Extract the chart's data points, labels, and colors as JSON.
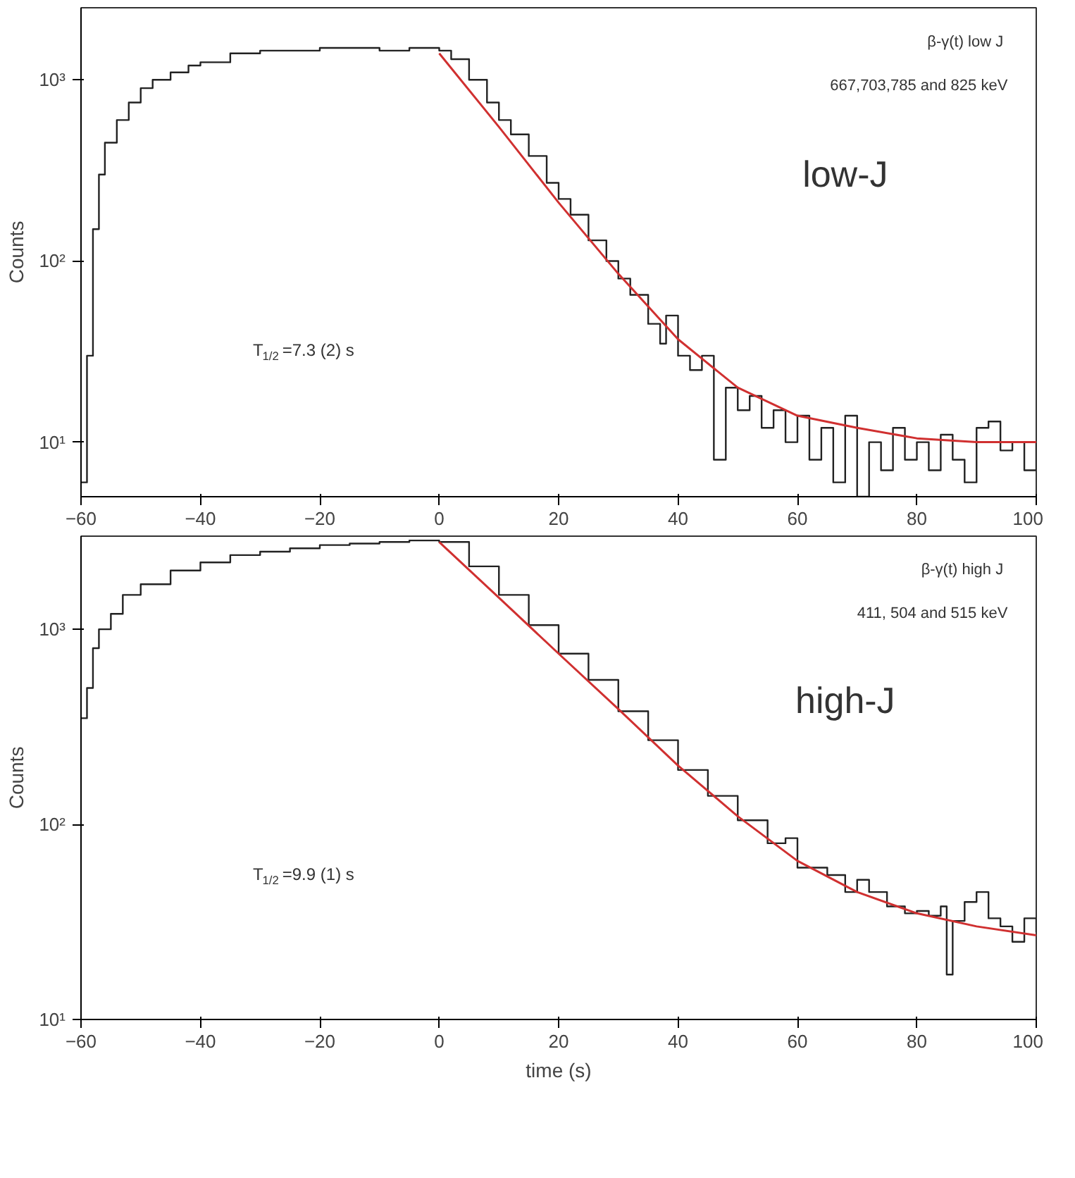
{
  "chart_data": [
    {
      "type": "step",
      "ylabel": "Counts",
      "log": "y",
      "grid": false,
      "xlim": [
        -60,
        100
      ],
      "ylim": [
        5,
        2500
      ],
      "xticks": [
        -60,
        -40,
        -20,
        0,
        20,
        40,
        60,
        80,
        100
      ],
      "yticks": [
        {
          "value": 10,
          "label": "10¹"
        },
        {
          "value": 100,
          "label": "10²"
        },
        {
          "value": 1000,
          "label": "10³"
        }
      ],
      "annotations": [
        "β-γ(t)  low J",
        "667,703,785 and 825 keV",
        "low-J",
        "T$_{1/2}$=7.3 (2) s"
      ],
      "series": [
        {
          "color": "#222222",
          "x": [
            -60,
            -59,
            -58,
            -57,
            -56,
            -54,
            -52,
            -50,
            -48,
            -45,
            -42,
            -40,
            -35,
            -30,
            -25,
            -20,
            -15,
            -10,
            -5,
            0,
            2,
            5,
            8,
            10,
            12,
            15,
            18,
            20,
            22,
            25,
            28,
            30,
            32,
            35,
            37,
            38,
            40,
            42,
            44,
            46,
            48,
            50,
            52,
            54,
            56,
            58,
            60,
            62,
            64,
            66,
            68,
            70,
            72,
            74,
            76,
            78,
            80,
            82,
            84,
            86,
            88,
            90,
            92,
            94,
            96,
            98,
            100
          ],
          "values": [
            6,
            30,
            150,
            300,
            450,
            600,
            750,
            900,
            1000,
            1100,
            1200,
            1250,
            1400,
            1450,
            1450,
            1500,
            1500,
            1450,
            1500,
            1450,
            1300,
            1000,
            750,
            600,
            500,
            380,
            270,
            220,
            180,
            130,
            100,
            80,
            65,
            45,
            35,
            50,
            30,
            25,
            30,
            8,
            20,
            15,
            18,
            12,
            15,
            10,
            14,
            8,
            12,
            6,
            14,
            5,
            10,
            7,
            12,
            8,
            10,
            7,
            11,
            8,
            6,
            12,
            13,
            9,
            10,
            7,
            10
          ]
        },
        {
          "type": "line",
          "color": "#d03030",
          "x": [
            0,
            10,
            20,
            30,
            40,
            50,
            60,
            70,
            80,
            90,
            100
          ],
          "values": [
            1400,
            550,
            210,
            85,
            37,
            20,
            14,
            12,
            10.5,
            10,
            10
          ]
        }
      ]
    },
    {
      "type": "step",
      "xlabel": "time (s)",
      "ylabel": "Counts",
      "log": "y",
      "grid": false,
      "xlim": [
        -60,
        100
      ],
      "ylim": [
        10,
        3000
      ],
      "xticks": [
        -60,
        -40,
        -20,
        0,
        20,
        40,
        60,
        80,
        100
      ],
      "yticks": [
        {
          "value": 10,
          "label": "10¹"
        },
        {
          "value": 100,
          "label": "10²"
        },
        {
          "value": 1000,
          "label": "10³"
        }
      ],
      "annotations": [
        "β-γ(t)  high J",
        "411, 504 and 515 keV",
        "high-J",
        "T$_{1/2}$=9.9 (1) s"
      ],
      "series": [
        {
          "color": "#222222",
          "x": [
            -60,
            -59,
            -58,
            -57,
            -55,
            -53,
            -50,
            -45,
            -40,
            -35,
            -30,
            -25,
            -20,
            -15,
            -10,
            -5,
            0,
            5,
            10,
            15,
            20,
            25,
            30,
            35,
            40,
            45,
            50,
            55,
            58,
            60,
            65,
            68,
            70,
            72,
            75,
            78,
            80,
            82,
            84,
            85,
            86,
            88,
            90,
            92,
            94,
            96,
            98,
            100
          ],
          "values": [
            350,
            500,
            800,
            1000,
            1200,
            1500,
            1700,
            2000,
            2200,
            2400,
            2500,
            2600,
            2700,
            2750,
            2800,
            2850,
            2800,
            2100,
            1500,
            1050,
            750,
            550,
            380,
            270,
            190,
            140,
            105,
            80,
            85,
            60,
            55,
            45,
            52,
            45,
            38,
            35,
            36,
            34,
            38,
            17,
            32,
            40,
            45,
            33,
            30,
            25,
            33,
            28
          ]
        },
        {
          "type": "line",
          "color": "#d03030",
          "x": [
            0,
            10,
            20,
            30,
            40,
            50,
            60,
            70,
            80,
            90,
            100
          ],
          "values": [
            2800,
            1450,
            750,
            390,
            200,
            110,
            65,
            45,
            35,
            30,
            27
          ]
        }
      ]
    }
  ]
}
